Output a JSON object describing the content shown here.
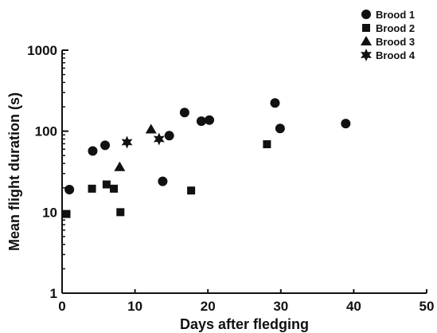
{
  "chart_data": {
    "type": "scatter",
    "title": "",
    "xlabel": "Days after fledging",
    "ylabel": "Mean flight duration (s)",
    "xlim": [
      0,
      50
    ],
    "ylim": [
      1,
      1000
    ],
    "yscale": "log",
    "x_ticks": [
      "0",
      "10",
      "20",
      "30",
      "40",
      "50"
    ],
    "y_ticks": [
      "1",
      "10",
      "100",
      "1000"
    ],
    "grid": false,
    "legend_position": "top-right",
    "series": [
      {
        "name": "Brood 1",
        "marker": "circle",
        "points": [
          [
            1,
            19
          ],
          [
            4.2,
            57
          ],
          [
            5.9,
            67
          ],
          [
            14.7,
            88
          ],
          [
            16.8,
            170
          ],
          [
            19.1,
            133
          ],
          [
            20.2,
            137
          ],
          [
            13.8,
            24
          ],
          [
            29.2,
            223
          ],
          [
            29.9,
            108
          ],
          [
            38.9,
            124
          ]
        ]
      },
      {
        "name": "Brood 2",
        "marker": "square",
        "points": [
          [
            0.6,
            9.5
          ],
          [
            4.1,
            19.5
          ],
          [
            6.1,
            22
          ],
          [
            7.1,
            19.5
          ],
          [
            8,
            10
          ],
          [
            17.7,
            18.5
          ],
          [
            28.1,
            69
          ]
        ]
      },
      {
        "name": "Brood 3",
        "marker": "triangle",
        "points": [
          [
            7.9,
            36
          ],
          [
            12.2,
            105
          ]
        ]
      },
      {
        "name": "Brood 4",
        "marker": "star",
        "points": [
          [
            8.9,
            73
          ],
          [
            13.3,
            80
          ]
        ]
      }
    ]
  },
  "colors": {
    "ink": "#111111"
  }
}
